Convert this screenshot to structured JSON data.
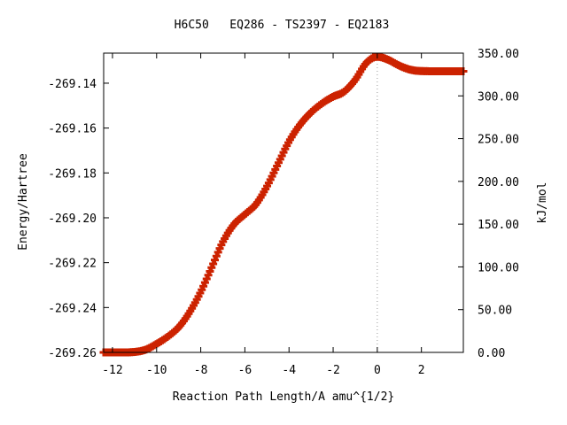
{
  "chart_data": {
    "type": "scatter",
    "title": "H6C50   EQ286 - TS2397 - EQ2183",
    "xlabel": "Reaction Path Length/A amu^{1/2}",
    "ylabel": "Energy/Hartree",
    "y2label": "kJ/mol",
    "xlim": [
      -12.4,
      3.9
    ],
    "ylim": [
      -269.26,
      -269.1266
    ],
    "y2lim": [
      0,
      350
    ],
    "x_ticks": [
      -12,
      -10,
      -8,
      -6,
      -4,
      -2,
      0,
      2
    ],
    "x_tick_labels": [
      "-12",
      "-10",
      "-8",
      "-6",
      "-4",
      "-2",
      "0",
      "2"
    ],
    "y_ticks": [
      -269.26,
      -269.24,
      -269.22,
      -269.2,
      -269.18,
      -269.16,
      -269.14
    ],
    "y_tick_labels": [
      "-269.26",
      "-269.24",
      "-269.22",
      "-269.20",
      "-269.18",
      "-269.16",
      "-269.14"
    ],
    "y2_ticks": [
      0,
      50,
      100,
      150,
      200,
      250,
      300,
      350
    ],
    "y2_tick_labels": [
      "0.00",
      "50.00",
      "100.00",
      "150.00",
      "200.00",
      "250.00",
      "300.00",
      "350.00"
    ],
    "ts_x": 0,
    "grid": false,
    "marker_color": "#cc2200",
    "line_color": "#22aa22",
    "ts_line_color": "#999999",
    "series": [
      {
        "points": [
          [
            -12.4,
            -269.26
          ],
          [
            -11.5,
            -269.26
          ],
          [
            -11.0,
            -269.2598
          ],
          [
            -10.5,
            -269.2588
          ],
          [
            -10.0,
            -269.2562
          ],
          [
            -9.5,
            -269.253
          ],
          [
            -9.0,
            -269.2488
          ],
          [
            -8.5,
            -269.242
          ],
          [
            -8.0,
            -269.233
          ],
          [
            -7.5,
            -269.222
          ],
          [
            -7.0,
            -269.2108
          ],
          [
            -6.5,
            -269.203
          ],
          [
            -6.0,
            -269.1985
          ],
          [
            -5.5,
            -269.194
          ],
          [
            -5.0,
            -269.186
          ],
          [
            -4.5,
            -269.176
          ],
          [
            -4.0,
            -269.166
          ],
          [
            -3.5,
            -269.1585
          ],
          [
            -3.0,
            -269.153
          ],
          [
            -2.5,
            -269.149
          ],
          [
            -2.0,
            -269.146
          ],
          [
            -1.5,
            -269.1438
          ],
          [
            -1.0,
            -269.1385
          ],
          [
            -0.5,
            -269.131
          ],
          [
            0.0,
            -269.1282
          ],
          [
            0.5,
            -269.1296
          ],
          [
            1.0,
            -269.1322
          ],
          [
            1.5,
            -269.134
          ],
          [
            2.0,
            -269.1346
          ],
          [
            3.0,
            -269.1347
          ],
          [
            3.9,
            -269.1347
          ]
        ]
      }
    ]
  }
}
